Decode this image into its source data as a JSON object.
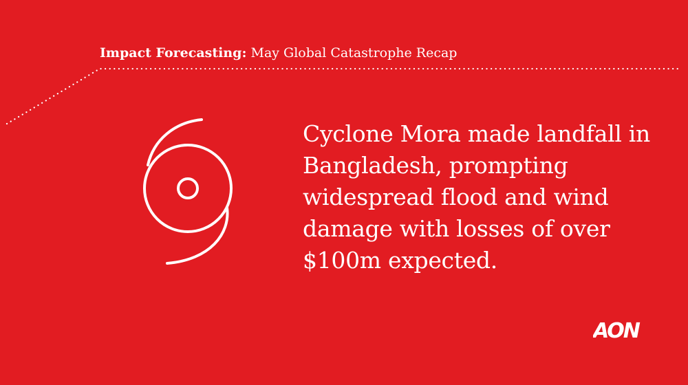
{
  "header": {
    "bold_text": "Impact Forecasting:",
    "regular_text": "May Global Catastrophe Recap"
  },
  "headline": {
    "text": "Cyclone Mora made landfall in Bangladesh, prompting widespread flood and wind damage with losses of over $100m expected."
  },
  "icons": {
    "cyclone": "cyclone-icon",
    "logo": "aon-logo"
  },
  "logo": {
    "text": "AON"
  },
  "colors": {
    "background": "#E21C22",
    "foreground": "#FFFFFF"
  }
}
